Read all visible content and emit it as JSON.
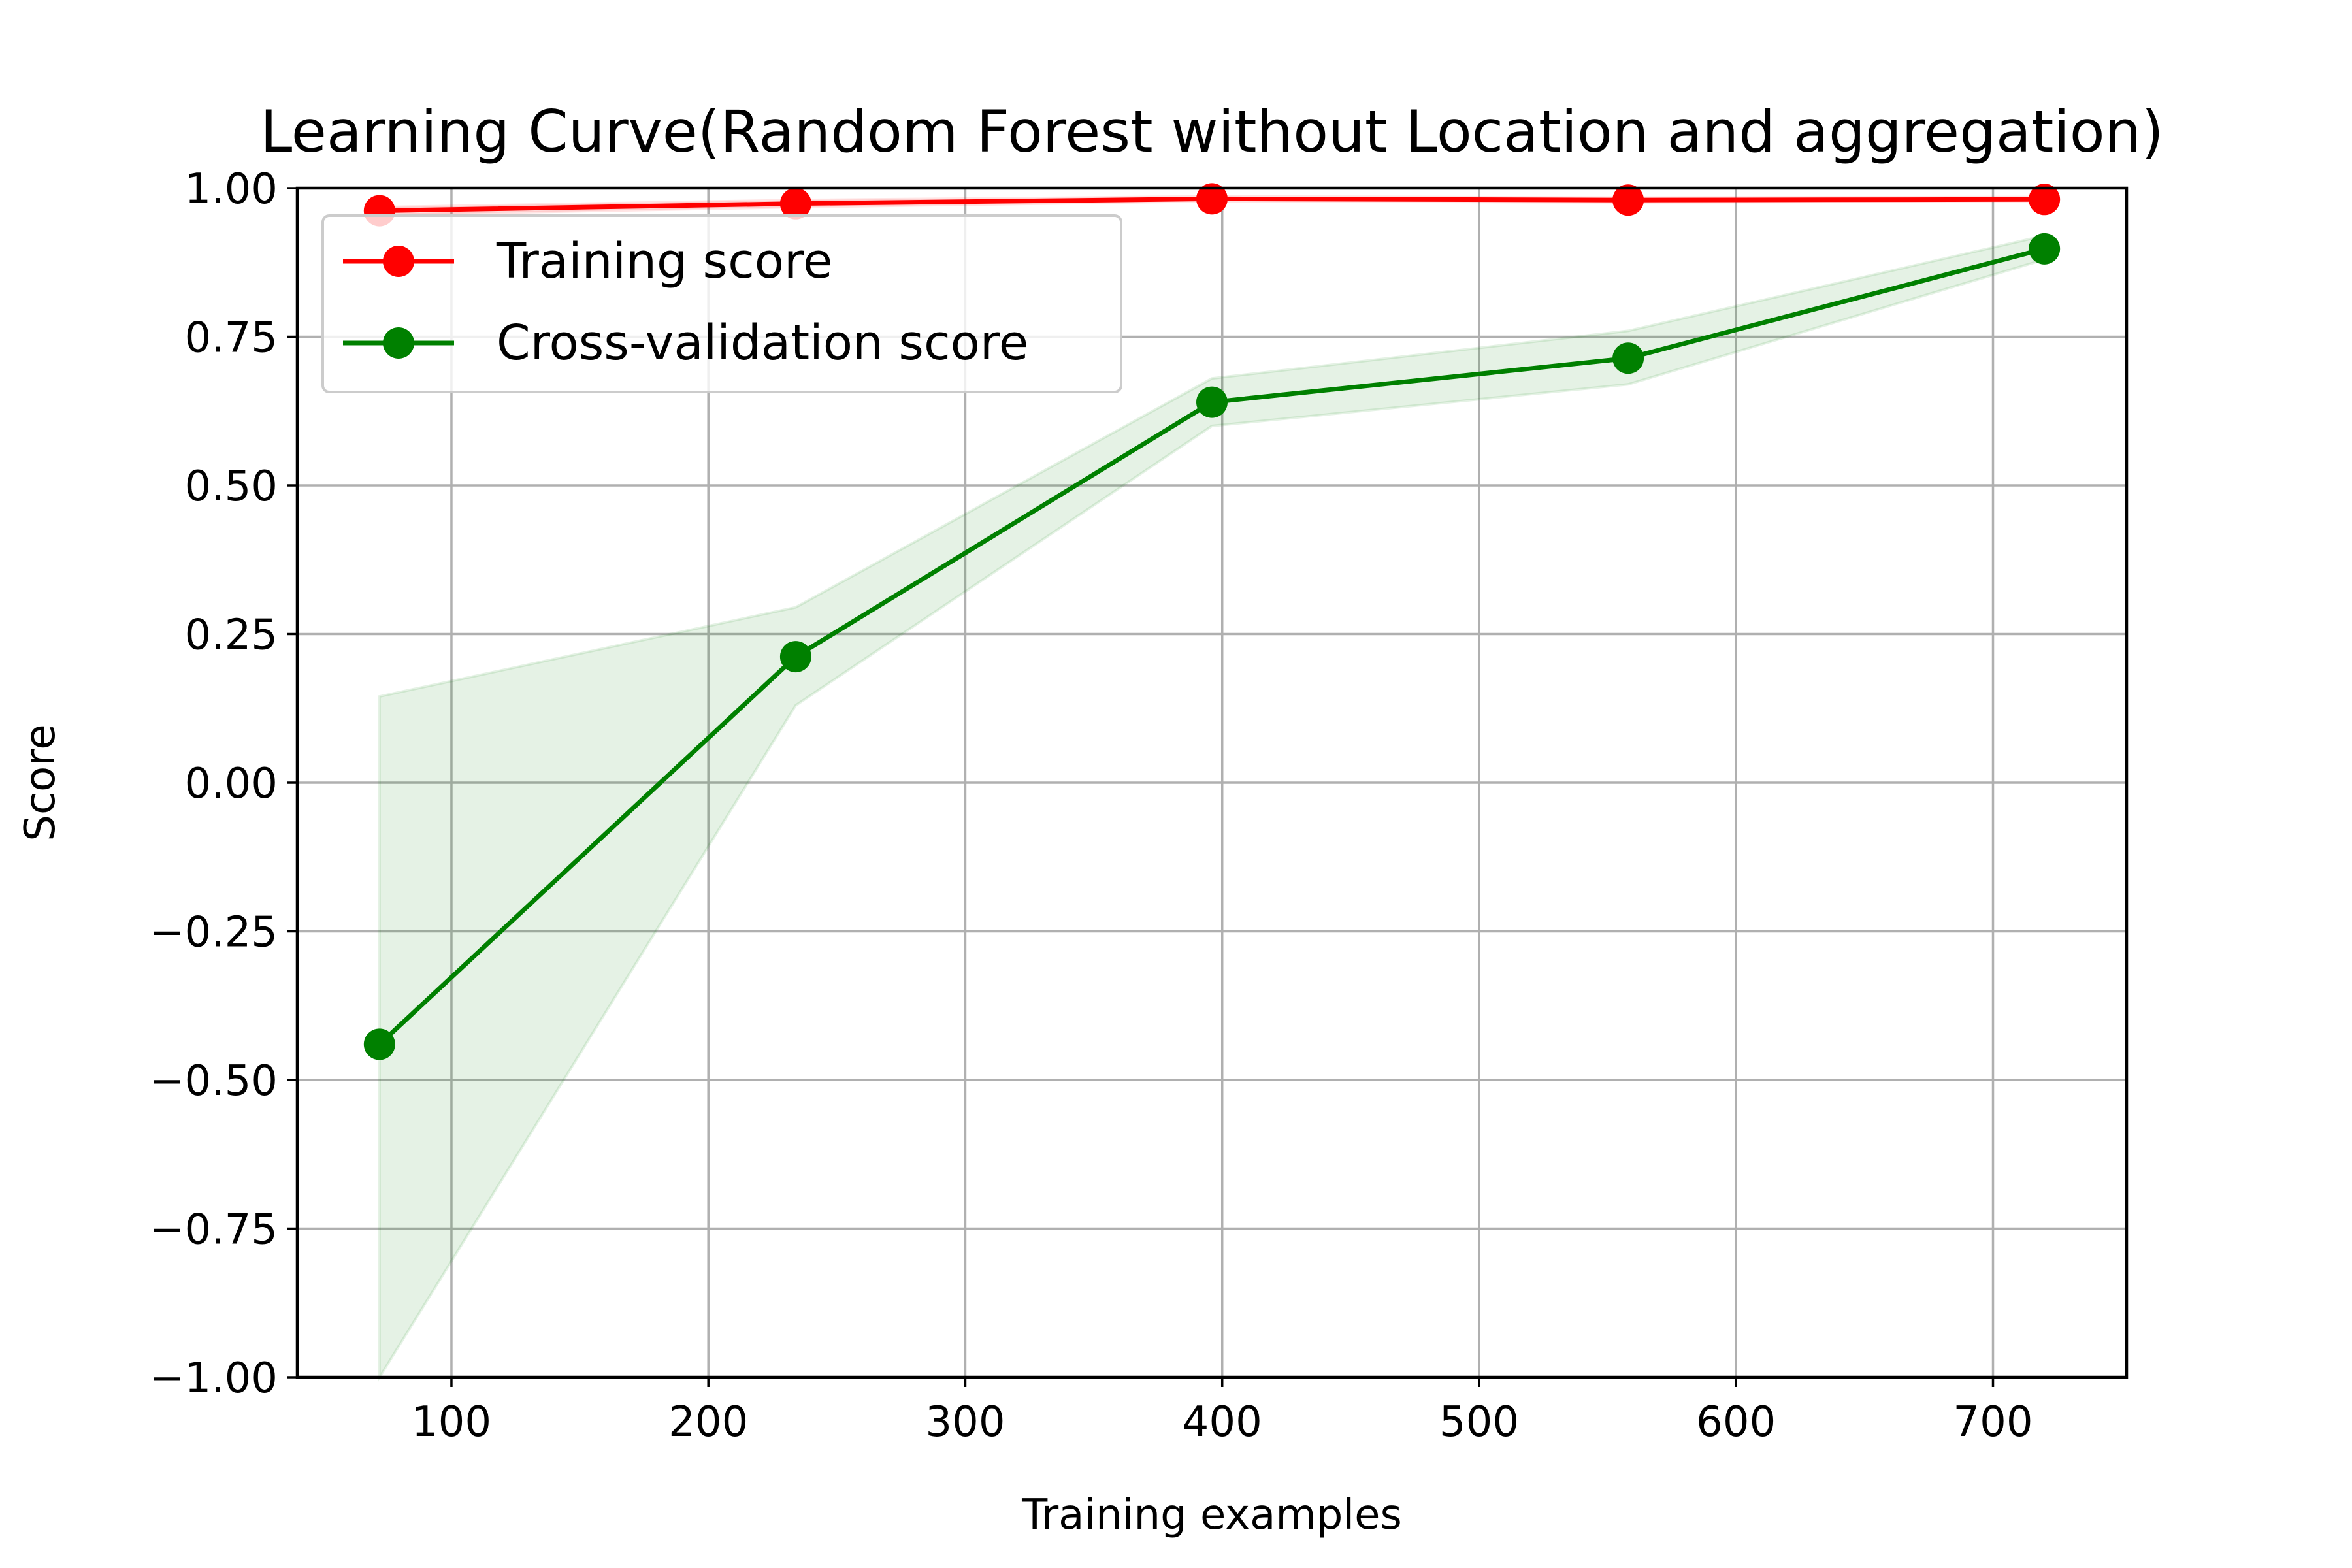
{
  "chart_data": {
    "type": "line",
    "title": "Learning Curve(Random Forest without Location and aggregation)",
    "xlabel": "Training examples",
    "ylabel": "Score",
    "xlim": [
      40,
      752
    ],
    "ylim": [
      -1.0,
      1.0
    ],
    "xticks": [
      100,
      200,
      300,
      400,
      500,
      600,
      700
    ],
    "xtick_labels": [
      "100",
      "200",
      "300",
      "400",
      "500",
      "600",
      "700"
    ],
    "yticks": [
      -1.0,
      -0.75,
      -0.5,
      -0.25,
      0.0,
      0.25,
      0.5,
      0.75,
      1.0
    ],
    "ytick_labels": [
      "−1.00",
      "−0.75",
      "−0.50",
      "−0.25",
      "0.00",
      "0.25",
      "0.50",
      "0.75",
      "1.00"
    ],
    "grid": true,
    "legend_position": "upper-left",
    "x": [
      72,
      234,
      396,
      558,
      720
    ],
    "series": [
      {
        "name": "Training score",
        "color": "#ff0000",
        "values": [
          0.962,
          0.974,
          0.982,
          0.98,
          0.981
        ],
        "band_lower": [
          0.955,
          0.968,
          0.978,
          0.976,
          0.978
        ],
        "band_upper": [
          0.968,
          0.98,
          0.986,
          0.984,
          0.985
        ]
      },
      {
        "name": "Cross-validation score",
        "color": "#008000",
        "values": [
          -0.44,
          0.212,
          0.64,
          0.714,
          0.898
        ],
        "band_lower": [
          -1.02,
          0.13,
          0.6,
          0.67,
          0.88
        ],
        "band_upper": [
          0.145,
          0.295,
          0.68,
          0.76,
          0.92
        ]
      }
    ]
  }
}
